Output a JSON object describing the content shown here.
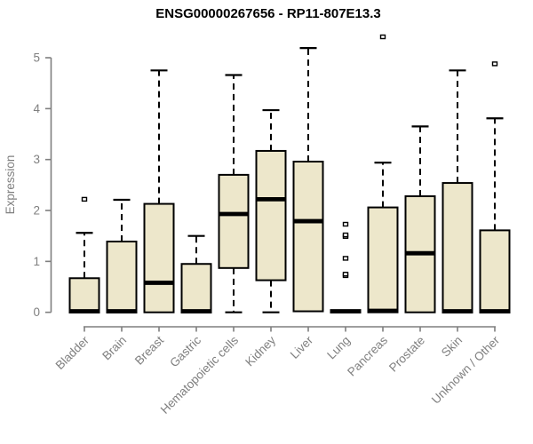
{
  "chart_data": {
    "type": "boxplot",
    "title": "ENSG00000267656 - RP11-807E13.3",
    "ylabel": "Expression",
    "ylim": [
      0,
      5
    ],
    "yticks": [
      0,
      1,
      2,
      3,
      4,
      5
    ],
    "grid": false,
    "legend": "none",
    "colors": {
      "box_fill": "#EDE7CB",
      "box_stroke": "#000000",
      "axis": "#7f7f7f",
      "title": "#000000",
      "outlier_fill": "#ffffff"
    },
    "categories": [
      "Bladder",
      "Brain",
      "Breast",
      "Gastric",
      "Hematopoietic cells",
      "Kidney",
      "Liver",
      "Lung",
      "Pancreas",
      "Prostate",
      "Skin",
      "Unknown / Other"
    ],
    "series": [
      {
        "name": "Bladder",
        "low": 0,
        "q1": 0,
        "median": 0.02,
        "q3": 0.67,
        "high": 1.56,
        "outliers": [
          2.22
        ]
      },
      {
        "name": "Brain",
        "low": 0,
        "q1": 0,
        "median": 0.02,
        "q3": 1.39,
        "high": 2.21,
        "outliers": []
      },
      {
        "name": "Breast",
        "low": 0,
        "q1": 0,
        "median": 0.58,
        "q3": 2.13,
        "high": 4.75,
        "outliers": []
      },
      {
        "name": "Gastric",
        "low": 0,
        "q1": 0,
        "median": 0.02,
        "q3": 0.95,
        "high": 1.5,
        "outliers": []
      },
      {
        "name": "Hematopoietic cells",
        "low": 0,
        "q1": 0.87,
        "median": 1.93,
        "q3": 2.7,
        "high": 4.66,
        "outliers": []
      },
      {
        "name": "Kidney",
        "low": 0,
        "q1": 0.63,
        "median": 2.22,
        "q3": 3.17,
        "high": 3.97,
        "outliers": []
      },
      {
        "name": "Liver",
        "low": 0.02,
        "q1": 0.02,
        "median": 1.79,
        "q3": 2.96,
        "high": 5.19,
        "outliers": []
      },
      {
        "name": "Lung",
        "low": 0.02,
        "q1": 0.02,
        "median": 0.02,
        "q3": 0.02,
        "high": 0.02,
        "outliers": [
          0.72,
          0.75,
          1.06,
          1.49,
          1.52,
          1.73
        ]
      },
      {
        "name": "Pancreas",
        "low": 0,
        "q1": 0,
        "median": 0.03,
        "q3": 2.06,
        "high": 2.94,
        "outliers": [
          5.41
        ]
      },
      {
        "name": "Prostate",
        "low": 0,
        "q1": 0,
        "median": 1.16,
        "q3": 2.28,
        "high": 3.65,
        "outliers": []
      },
      {
        "name": "Skin",
        "low": 0,
        "q1": 0,
        "median": 0.02,
        "q3": 2.54,
        "high": 4.75,
        "outliers": []
      },
      {
        "name": "Unknown / Other",
        "low": 0,
        "q1": 0,
        "median": 0.02,
        "q3": 1.61,
        "high": 3.81,
        "outliers": [
          4.88
        ]
      }
    ]
  }
}
